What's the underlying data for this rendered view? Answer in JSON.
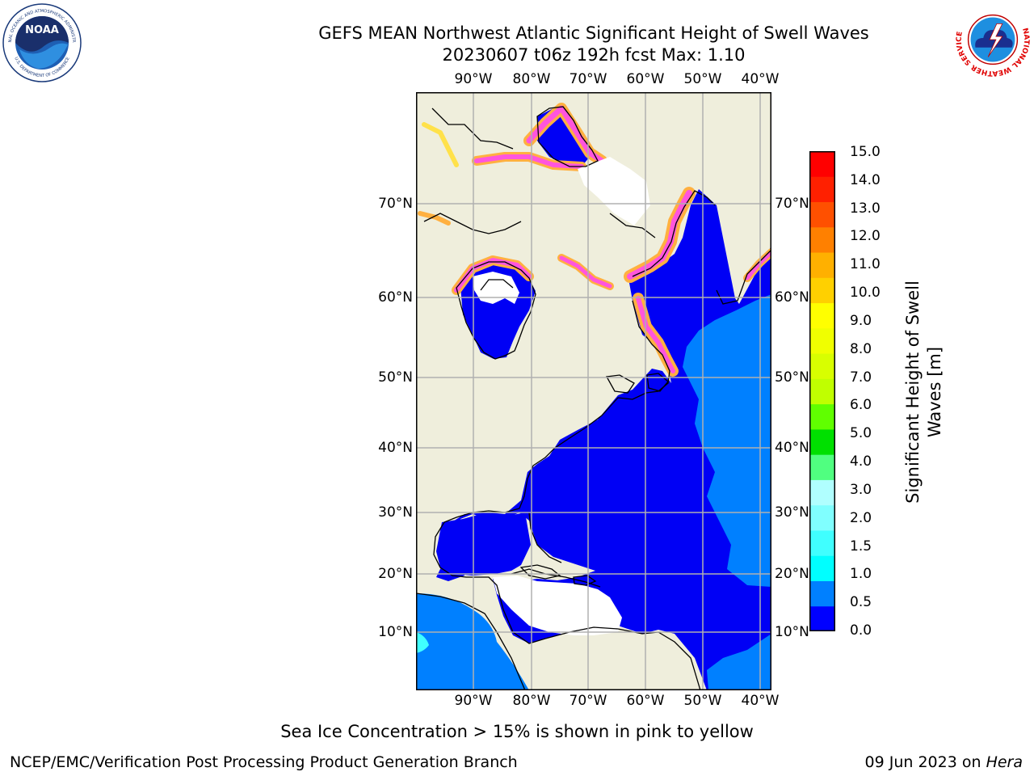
{
  "title": {
    "line1": "GEFS MEAN Northwest Atlantic Significant Height of Swell Waves",
    "line2": "20230607 t06z 192h fcst   Max: 1.10"
  },
  "map": {
    "lon_labels": [
      "90°W",
      "80°W",
      "70°W",
      "60°W",
      "50°W",
      "40°W"
    ],
    "lat_labels": [
      "70°N",
      "60°N",
      "50°N",
      "40°N",
      "30°N",
      "20°N",
      "10°N"
    ],
    "colors": {
      "land": "#efeedc",
      "ocean_low": "#0000f5",
      "ocean_mid": "#0080ff",
      "ice_pink": "#ff55dd",
      "ice_orange": "#ffb040",
      "ice_yellow": "#ffe14a",
      "ice_white": "#ffffff",
      "grid": "#b0b0b0",
      "coast": "#000000"
    }
  },
  "colorbar": {
    "label_line1": "Significant Height of Swell",
    "label_line2": "Waves [m]",
    "ticks": [
      "15.0",
      "14.0",
      "13.0",
      "12.0",
      "11.0",
      "10.0",
      "9.0",
      "8.0",
      "7.0",
      "6.0",
      "5.0",
      "4.0",
      "3.0",
      "2.0",
      "1.5",
      "1.0",
      "0.5",
      "0.0"
    ],
    "colors_bottom_to_top": [
      "#0000ff",
      "#0080ff",
      "#00ffff",
      "#40ffff",
      "#80ffff",
      "#b0ffff",
      "#50ff80",
      "#00e000",
      "#60ff00",
      "#c0ff00",
      "#d8ff00",
      "#f0ff00",
      "#ffff00",
      "#ffd000",
      "#ffb000",
      "#ff8000",
      "#ff5000",
      "#ff2000",
      "#ff0000"
    ]
  },
  "note": "Sea Ice Concentration > 15% is shown in pink to yellow",
  "footer": {
    "left": "NCEP/EMC/Verification Post Processing Product Generation Branch",
    "date": "09 Jun 2023 on ",
    "machine": "Hera"
  },
  "logos": {
    "noaa": "NOAA",
    "noaa_ring_top": "NATIONAL OCEANIC AND ATMOSPHERIC ADMINISTRATION",
    "noaa_ring_bottom": "U.S. DEPARTMENT OF COMMERCE",
    "nws_ring": "NATIONAL WEATHER SERVICE"
  }
}
